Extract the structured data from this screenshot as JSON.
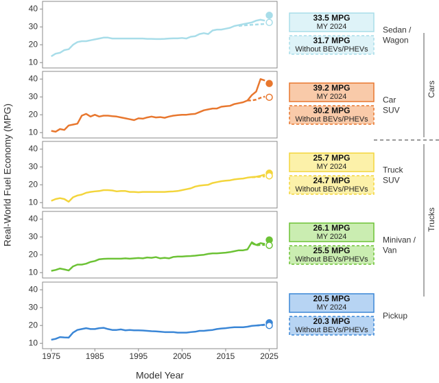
{
  "y_label": "Real-World Fuel Economy (MPG)",
  "x_label": "Model Year",
  "groups": [
    "Cars",
    "Trucks"
  ],
  "chart_data": [
    {
      "type": "line",
      "label": [
        "Sedan /",
        "Wagon"
      ],
      "color": "#a8dde9",
      "box_color": "#def3f8",
      "box_labels": [
        [
          "33.5 MPG",
          "MY 2024"
        ],
        [
          "31.7 MPG",
          "Without BEVs/PHEVs"
        ]
      ],
      "xlim": [
        1973,
        2026.8
      ],
      "ylim": [
        7,
        44.3
      ],
      "yticks": [
        10,
        20,
        30,
        40
      ],
      "x": [
        1975,
        1976,
        1977,
        1978,
        1979,
        1980,
        1981,
        1982,
        1983,
        1984,
        1985,
        1986,
        1987,
        1988,
        1989,
        1990,
        1991,
        1992,
        1993,
        1994,
        1995,
        1996,
        1997,
        1998,
        1999,
        2000,
        2001,
        2002,
        2003,
        2004,
        2005,
        2006,
        2007,
        2008,
        2009,
        2010,
        2011,
        2012,
        2013,
        2014,
        2015,
        2016,
        2017,
        2018,
        2019,
        2020,
        2021,
        2022,
        2023,
        2024
      ],
      "series": [
        {
          "style": "solid",
          "values": [
            13.5,
            15,
            15.5,
            17,
            17.5,
            20,
            21.5,
            22,
            22,
            22.5,
            23,
            23.5,
            24,
            24,
            23.5,
            23.5,
            23.5,
            23.5,
            23.5,
            23.5,
            23.5,
            23.5,
            23.3,
            23.3,
            23.2,
            23.2,
            23.3,
            23.5,
            23.6,
            23.6,
            23.8,
            23.5,
            24.5,
            24.8,
            26,
            26.5,
            26,
            28,
            28.5,
            28.5,
            29,
            29.5,
            30.5,
            31,
            31.5,
            32,
            32.5,
            33.5,
            34,
            33.5
          ]
        },
        {
          "style": "dashed",
          "x": [
            2018,
            2019,
            2020,
            2021,
            2022,
            2023,
            2024
          ],
          "values": [
            30.5,
            30.8,
            31,
            31.2,
            31.3,
            31.5,
            31.7
          ]
        },
        {
          "style": "point",
          "x": [
            2025
          ],
          "values": [
            36.5
          ]
        },
        {
          "style": "open-point",
          "x": [
            2025
          ],
          "values": [
            32.5
          ]
        }
      ]
    },
    {
      "type": "line",
      "label": [
        "Car",
        "SUV"
      ],
      "color": "#e8772e",
      "box_color": "#f9caa9",
      "box_labels": [
        [
          "39.2 MPG",
          "MY 2024"
        ],
        [
          "30.2 MPG",
          "Without BEVs/PHEVs"
        ]
      ],
      "xlim": [
        1973,
        2026.8
      ],
      "ylim": [
        7,
        44.3
      ],
      "yticks": [
        10,
        20,
        30,
        40
      ],
      "x": [
        1975,
        1976,
        1977,
        1978,
        1979,
        1980,
        1981,
        1982,
        1983,
        1984,
        1985,
        1986,
        1987,
        1988,
        1989,
        1990,
        1991,
        1992,
        1993,
        1994,
        1995,
        1996,
        1997,
        1998,
        1999,
        2000,
        2001,
        2002,
        2003,
        2004,
        2005,
        2006,
        2007,
        2008,
        2009,
        2010,
        2011,
        2012,
        2013,
        2014,
        2015,
        2016,
        2017,
        2018,
        2019,
        2020,
        2021,
        2022,
        2023,
        2024
      ],
      "series": [
        {
          "style": "solid",
          "values": [
            11,
            10.5,
            12,
            11.5,
            14,
            14.5,
            15,
            19.5,
            20.5,
            19,
            20,
            19,
            19.5,
            19.5,
            19.2,
            19,
            18.5,
            18,
            17.5,
            17,
            18,
            17.8,
            18.5,
            19,
            18.5,
            18.7,
            18.3,
            19,
            19.5,
            19.8,
            20,
            20,
            20.3,
            20.5,
            21.5,
            22.5,
            23,
            23.5,
            23.5,
            24.5,
            24.8,
            25,
            26,
            26.5,
            27,
            28,
            31,
            33,
            40,
            39.2
          ]
        },
        {
          "style": "dashed",
          "x": [
            2020,
            2021,
            2022,
            2023,
            2024
          ],
          "values": [
            28,
            28,
            28.5,
            29.5,
            30.2
          ]
        },
        {
          "style": "point",
          "x": [
            2025
          ],
          "values": [
            37.5
          ]
        },
        {
          "style": "open-point",
          "x": [
            2025
          ],
          "values": [
            29.8
          ]
        }
      ]
    },
    {
      "type": "line",
      "label": [
        "Truck",
        "SUV"
      ],
      "color": "#f3d53c",
      "box_color": "#fcf1a9",
      "box_labels": [
        [
          "25.7 MPG",
          "MY 2024"
        ],
        [
          "24.7 MPG",
          "Without BEVs/PHEVs"
        ]
      ],
      "xlim": [
        1973,
        2026.8
      ],
      "ylim": [
        7,
        44.3
      ],
      "yticks": [
        10,
        20,
        30,
        40
      ],
      "x": [
        1975,
        1976,
        1977,
        1978,
        1979,
        1980,
        1981,
        1982,
        1983,
        1984,
        1985,
        1986,
        1987,
        1988,
        1989,
        1990,
        1991,
        1992,
        1993,
        1994,
        1995,
        1996,
        1997,
        1998,
        1999,
        2000,
        2001,
        2002,
        2003,
        2004,
        2005,
        2006,
        2007,
        2008,
        2009,
        2010,
        2011,
        2012,
        2013,
        2014,
        2015,
        2016,
        2017,
        2018,
        2019,
        2020,
        2021,
        2022,
        2023,
        2024
      ],
      "series": [
        {
          "style": "solid",
          "values": [
            11,
            12,
            12.5,
            12,
            10.5,
            13,
            14,
            14.5,
            15.5,
            16,
            16.3,
            16.5,
            17,
            17,
            16.8,
            16.3,
            16.5,
            16.5,
            16,
            16,
            15.8,
            16,
            16,
            16,
            16,
            16,
            16,
            16.2,
            16.3,
            16.5,
            17,
            17.5,
            18,
            19,
            19.5,
            19.8,
            20,
            21,
            21.5,
            22,
            22.3,
            22.5,
            23,
            23.3,
            23.5,
            24,
            24.3,
            24.5,
            25,
            25.7
          ]
        },
        {
          "style": "dashed",
          "x": [
            2021,
            2022,
            2023,
            2024
          ],
          "values": [
            24.2,
            24.3,
            24.5,
            24.7
          ]
        },
        {
          "style": "point",
          "x": [
            2025
          ],
          "values": [
            26.5
          ]
        },
        {
          "style": "open-point",
          "x": [
            2025
          ],
          "values": [
            25
          ]
        }
      ]
    },
    {
      "type": "line",
      "label": [
        "Minivan /",
        "Van"
      ],
      "color": "#6cc235",
      "box_color": "#caedb1",
      "box_labels": [
        [
          "26.1 MPG",
          "MY 2024"
        ],
        [
          "25.5 MPG",
          "Without BEVs/PHEVs"
        ]
      ],
      "xlim": [
        1973,
        2026.8
      ],
      "ylim": [
        7,
        44.3
      ],
      "yticks": [
        10,
        20,
        30,
        40
      ],
      "x": [
        1975,
        1976,
        1977,
        1978,
        1979,
        1980,
        1981,
        1982,
        1983,
        1984,
        1985,
        1986,
        1987,
        1988,
        1989,
        1990,
        1991,
        1992,
        1993,
        1994,
        1995,
        1996,
        1997,
        1998,
        1999,
        2000,
        2001,
        2002,
        2003,
        2004,
        2005,
        2006,
        2007,
        2008,
        2009,
        2010,
        2011,
        2012,
        2013,
        2014,
        2015,
        2016,
        2017,
        2018,
        2019,
        2020,
        2021,
        2022,
        2023,
        2024
      ],
      "series": [
        {
          "style": "solid",
          "values": [
            11,
            11.5,
            12.3,
            11.8,
            11.2,
            13.5,
            14.5,
            14.5,
            15,
            16,
            16.5,
            17.5,
            17.7,
            17.8,
            17.8,
            17.8,
            17.8,
            18,
            17.8,
            18,
            18.2,
            18,
            18.5,
            18.3,
            18.7,
            18,
            18.3,
            18,
            18.8,
            19,
            19,
            19.2,
            19.3,
            19.5,
            19.8,
            20,
            20.5,
            20.8,
            20.8,
            21,
            21.2,
            21.5,
            22,
            22.5,
            22.5,
            23,
            27,
            25.5,
            26.5,
            26.1
          ]
        },
        {
          "style": "dashed",
          "x": [
            2021,
            2022,
            2023,
            2024
          ],
          "values": [
            26.5,
            25.3,
            25.5,
            25.5
          ]
        },
        {
          "style": "point",
          "x": [
            2025
          ],
          "values": [
            28.3
          ]
        },
        {
          "style": "open-point",
          "x": [
            2025
          ],
          "values": [
            25.3
          ]
        }
      ]
    },
    {
      "type": "line",
      "label": [
        "Pickup"
      ],
      "color": "#3a86d6",
      "box_color": "#b7d4f3",
      "box_labels": [
        [
          "20.5 MPG",
          "MY 2024"
        ],
        [
          "20.3 MPG",
          "Without BEVs/PHEVs"
        ]
      ],
      "xlim": [
        1973,
        2026.8
      ],
      "ylim": [
        7,
        44.3
      ],
      "yticks": [
        10,
        20,
        30,
        40
      ],
      "xticks": [
        1975,
        1985,
        1995,
        2005,
        2015,
        2025
      ],
      "x": [
        1975,
        1976,
        1977,
        1978,
        1979,
        1980,
        1981,
        1982,
        1983,
        1984,
        1985,
        1986,
        1987,
        1988,
        1989,
        1990,
        1991,
        1992,
        1993,
        1994,
        1995,
        1996,
        1997,
        1998,
        1999,
        2000,
        2001,
        2002,
        2003,
        2004,
        2005,
        2006,
        2007,
        2008,
        2009,
        2010,
        2011,
        2012,
        2013,
        2014,
        2015,
        2016,
        2017,
        2018,
        2019,
        2020,
        2021,
        2022,
        2023,
        2024
      ],
      "series": [
        {
          "style": "solid",
          "values": [
            12,
            12.5,
            13.5,
            13.3,
            13.2,
            16,
            17.5,
            18,
            18.5,
            18,
            18,
            18.5,
            18.7,
            18,
            17.5,
            17.5,
            17.8,
            17.3,
            17.5,
            17.3,
            17.3,
            17.2,
            17,
            16.8,
            16.7,
            16.5,
            16.3,
            16.3,
            16.3,
            16,
            16,
            16,
            16.3,
            16.5,
            17,
            17,
            17.3,
            17.5,
            18,
            18.3,
            18.5,
            18.8,
            19,
            19,
            19,
            19.3,
            19.8,
            20,
            20.2,
            20.5
          ]
        },
        {
          "style": "dashed",
          "x": [
            2022,
            2023,
            2024
          ],
          "values": [
            20,
            20.1,
            20.3
          ]
        },
        {
          "style": "point",
          "x": [
            2025
          ],
          "values": [
            21.5
          ]
        },
        {
          "style": "open-point",
          "x": [
            2025
          ],
          "values": [
            20
          ]
        }
      ]
    }
  ]
}
